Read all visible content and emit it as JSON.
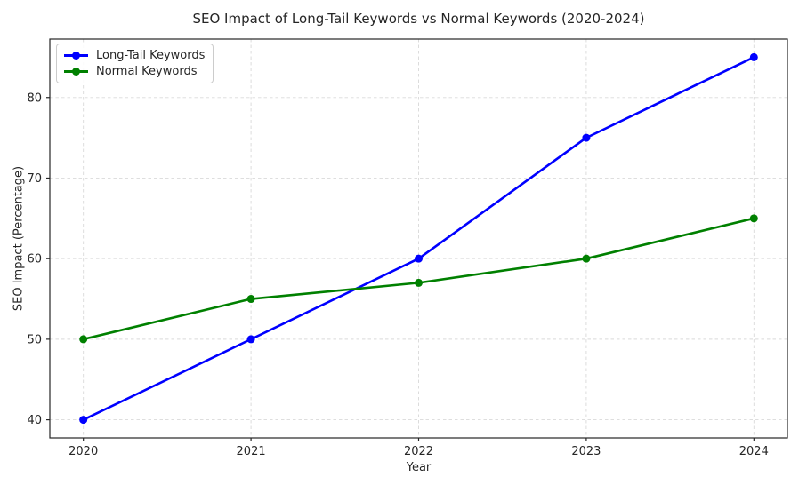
{
  "chart_data": {
    "type": "line",
    "title": "SEO Impact of Long-Tail Keywords vs Normal Keywords (2020-2024)",
    "xlabel": "Year",
    "ylabel": "SEO Impact (Percentage)",
    "x": [
      2020,
      2021,
      2022,
      2023,
      2024
    ],
    "x_tick_labels": [
      "2020",
      "2021",
      "2022",
      "2023",
      "2024"
    ],
    "y_ticks": [
      40,
      50,
      60,
      70,
      80
    ],
    "xlim": [
      2019.8,
      2024.2
    ],
    "ylim": [
      37.75,
      87.25
    ],
    "grid": true,
    "grid_style": "dashed",
    "legend_position": "upper-left",
    "series": [
      {
        "name": "Long-Tail Keywords",
        "color": "#0000ff",
        "marker": "circle",
        "values": [
          40,
          50,
          60,
          75,
          85
        ]
      },
      {
        "name": "Normal Keywords",
        "color": "#008000",
        "marker": "circle",
        "values": [
          50,
          55,
          57,
          60,
          65
        ]
      }
    ],
    "colors": {
      "background": "#ffffff",
      "grid": "#d9d9d9",
      "spine": "#262626",
      "text": "#262626",
      "legend_border": "#cccccc"
    }
  }
}
